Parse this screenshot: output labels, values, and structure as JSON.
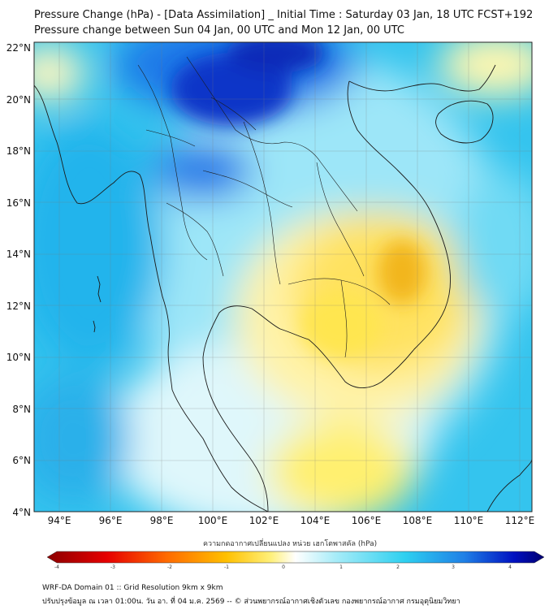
{
  "title_line1": "Pressure Change (hPa) - [Data Assimilation] _ Initial Time : Saturday 03 Jan, 18 UTC FCST+192",
  "title_line2": "Pressure change between Sun 04 Jan, 00 UTC and Mon 12 Jan, 00 UTC",
  "lat_labels": [
    "22°N",
    "20°N",
    "18°N",
    "16°N",
    "14°N",
    "12°N",
    "10°N",
    "8°N",
    "6°N",
    "4°N"
  ],
  "lon_labels": [
    "94°E",
    "96°E",
    "98°E",
    "100°E",
    "102°E",
    "104°E",
    "106°E",
    "108°E",
    "110°E",
    "112°E"
  ],
  "colorbar": {
    "title": "ความกดอากาศเปลี่ยนแปลง หน่วย เฮกโตพาสคัล (hPa)",
    "ticks": [
      "-4",
      "-3",
      "-2",
      "-1",
      "0",
      "1",
      "2",
      "3",
      "4"
    ],
    "range": [
      -4,
      4
    ],
    "colors": [
      "#8b0000",
      "#e60000",
      "#ff6a00",
      "#ffc000",
      "#fff07a",
      "#ffffff",
      "#a8ecf8",
      "#2ed0f0",
      "#1f7fe6",
      "#0010c0",
      "#000070"
    ]
  },
  "footer_line1": "WRF-DA Domain 01 :: Grid Resolution 9km x 9km",
  "footer_line2": "ปรับปรุงข้อมูล ณ เวลา 01:00น. วัน อา. ที่ 04 ม.ค. 2569 -- © ส่วนพยากรณ์อากาศเชิงตัวเลข กองพยากรณ์อากาศ กรมอุตุนิยมวิทยา"
}
